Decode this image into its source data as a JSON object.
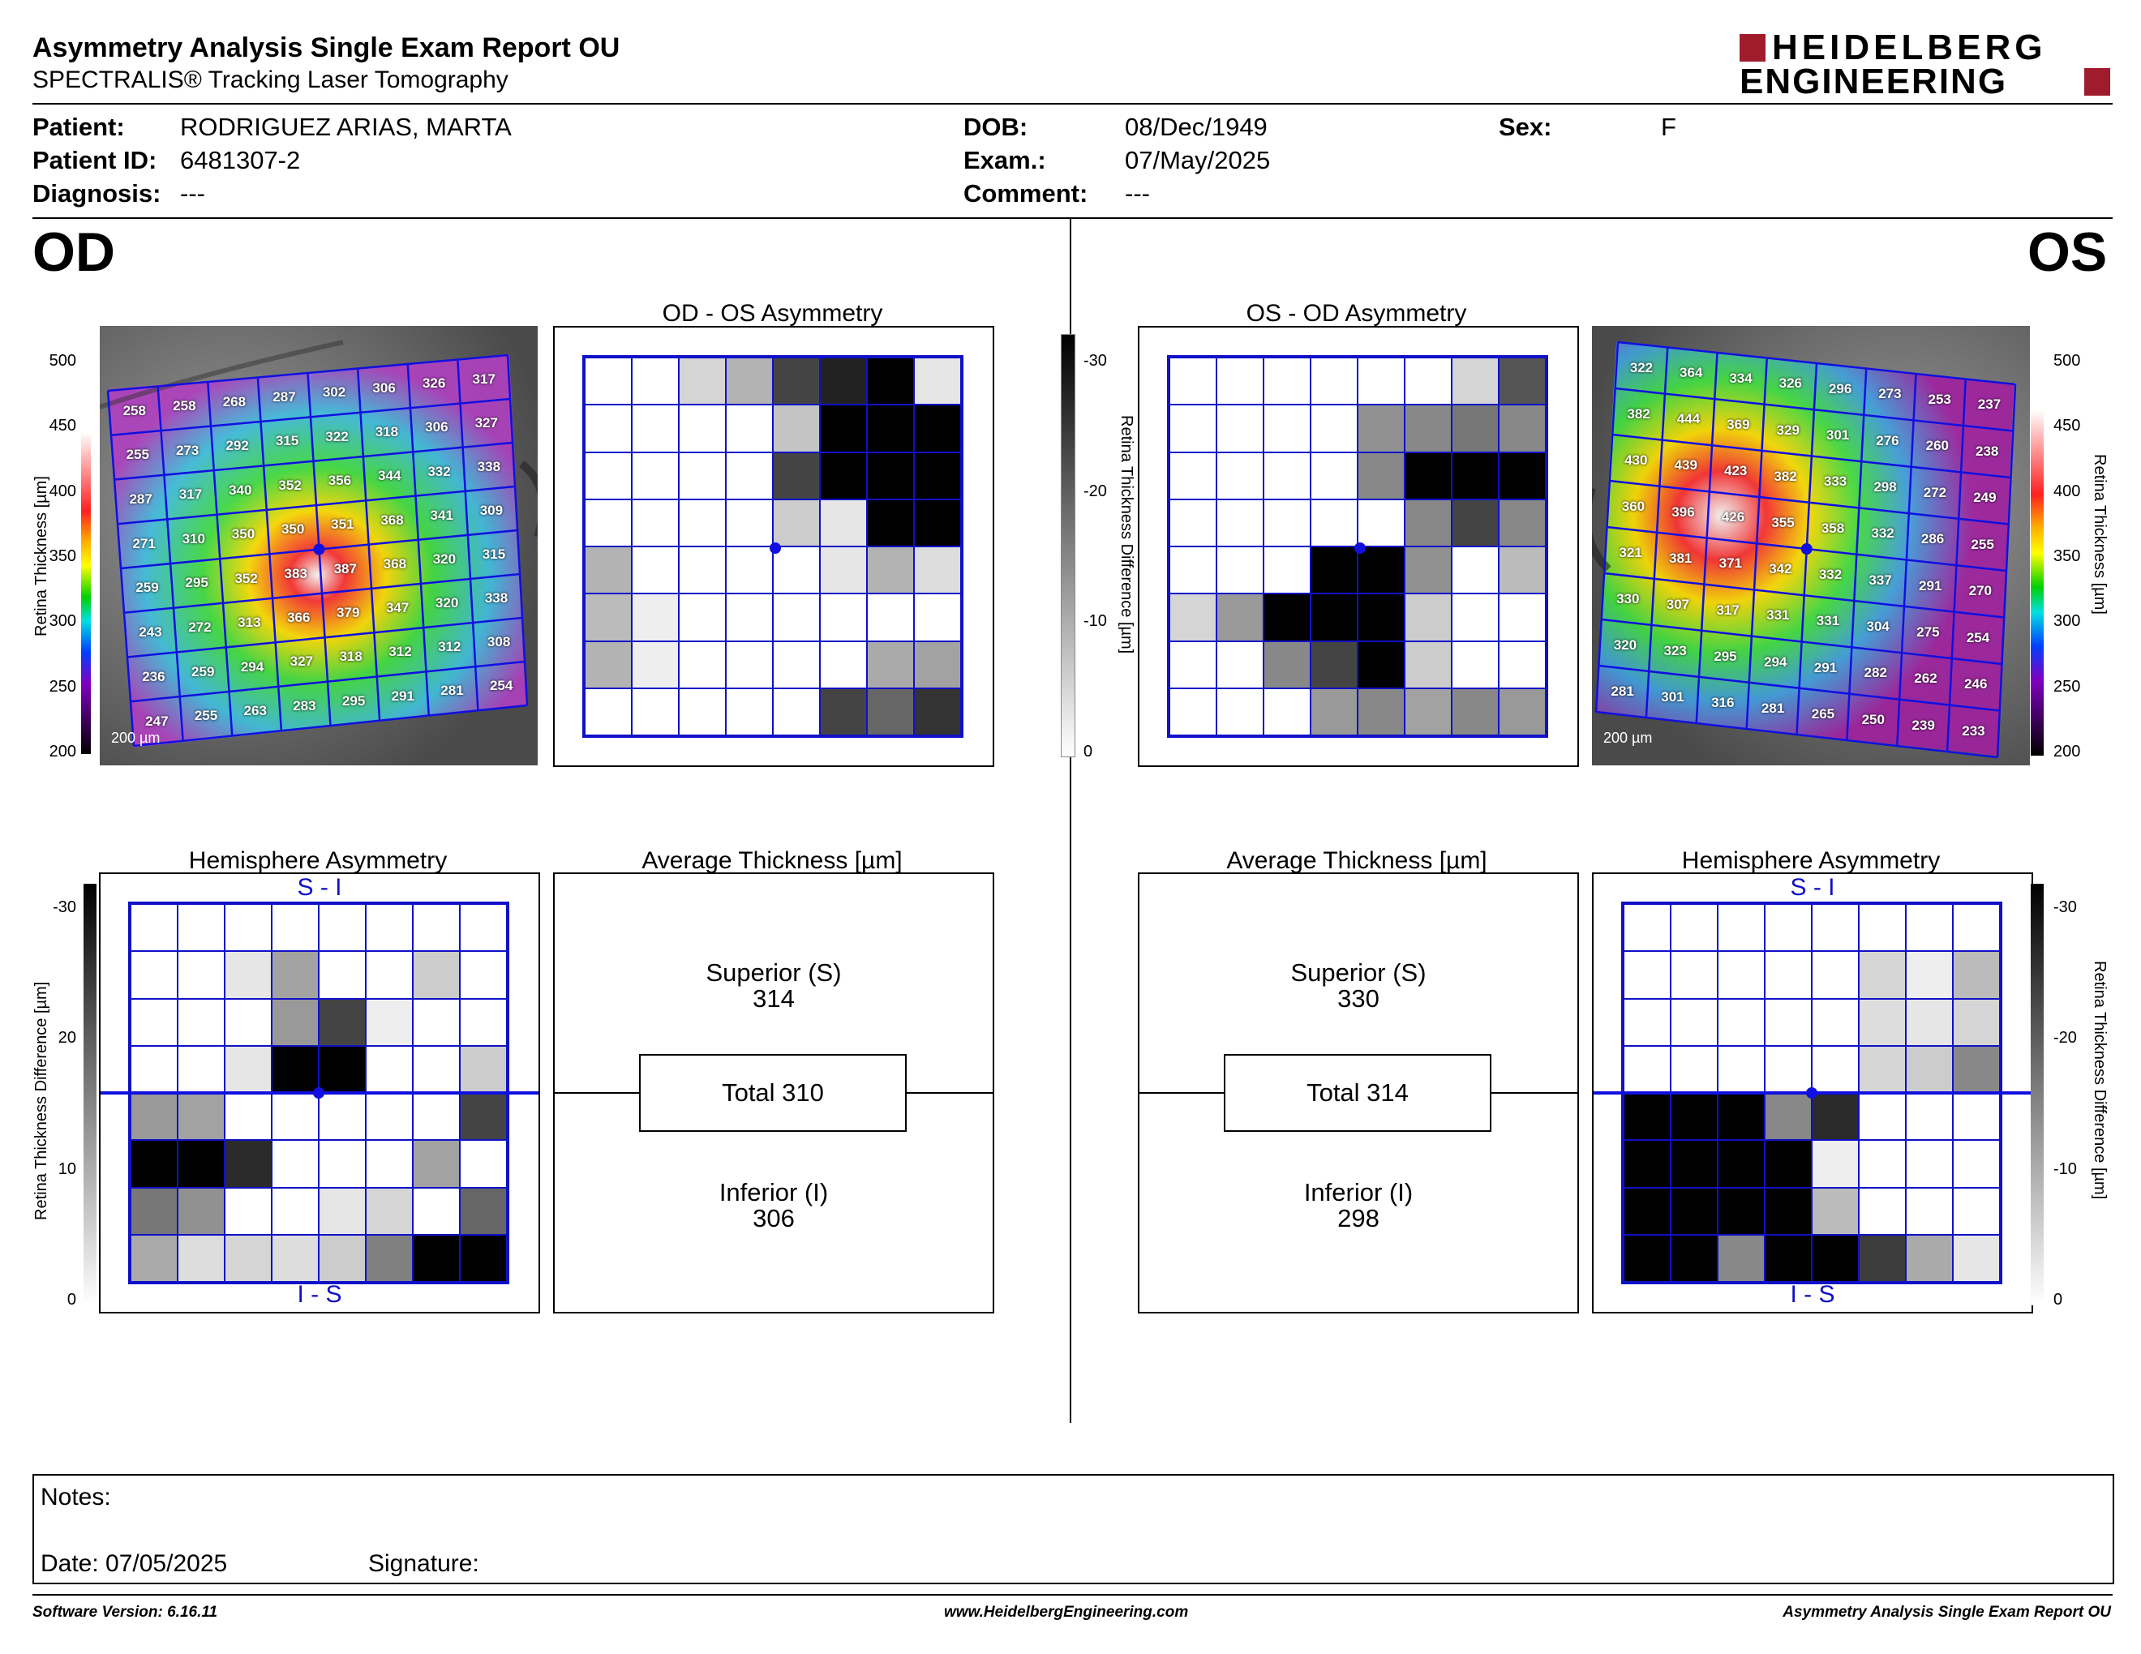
{
  "header": {
    "title": "Asymmetry Analysis Single Exam Report OU",
    "subtitle": "SPECTRALIS® Tracking Laser Tomography",
    "logo_line1": "HEIDELBERG",
    "logo_line2": "ENGINEERING"
  },
  "patient": {
    "patient_label": "Patient:",
    "patient": "RODRIGUEZ ARIAS, MARTA",
    "id_label": "Patient ID:",
    "id": "6481307-2",
    "diag_label": "Diagnosis:",
    "diagnosis": "---",
    "dob_label": "DOB:",
    "dob": "08/Dec/1949",
    "exam_label": "Exam.:",
    "exam": "07/May/2025",
    "comment_label": "Comment:",
    "comment": "---",
    "sex_label": "Sex:",
    "sex": "F"
  },
  "od": {
    "eye": "OD",
    "asym_title": "OD - OS Asymmetry",
    "hemi_title": "Hemisphere Asymmetry",
    "avg_title": "Average Thickness [µm]",
    "superior_label": "Superior (S)",
    "superior": "314",
    "total": "Total 310",
    "inferior_label": "Inferior (I)",
    "inferior": "306",
    "thickness": [
      [
        258,
        258,
        268,
        287,
        302,
        306,
        326,
        317
      ],
      [
        255,
        273,
        292,
        315,
        322,
        318,
        306,
        327
      ],
      [
        287,
        317,
        340,
        352,
        356,
        344,
        332,
        338
      ],
      [
        271,
        310,
        350,
        350,
        351,
        368,
        341,
        309
      ],
      [
        259,
        295,
        352,
        383,
        387,
        368,
        320,
        315
      ],
      [
        243,
        272,
        313,
        366,
        379,
        347,
        320,
        338
      ],
      [
        236,
        259,
        294,
        327,
        318,
        312,
        312,
        308
      ],
      [
        247,
        255,
        263,
        283,
        295,
        291,
        281,
        254
      ]
    ],
    "asym": [
      [
        0,
        0,
        5,
        9,
        22,
        26,
        30,
        3
      ],
      [
        0,
        0,
        0,
        0,
        7,
        30,
        30,
        30
      ],
      [
        0,
        0,
        0,
        0,
        22,
        30,
        30,
        30
      ],
      [
        0,
        0,
        0,
        0,
        6,
        3,
        30,
        30
      ],
      [
        9,
        0,
        0,
        0,
        0,
        3,
        9,
        4
      ],
      [
        8,
        2,
        0,
        0,
        0,
        0,
        0,
        0
      ],
      [
        9,
        2,
        0,
        0,
        0,
        0,
        10,
        11
      ],
      [
        0,
        0,
        0,
        0,
        0,
        22,
        18,
        24
      ]
    ],
    "hemi": [
      [
        0,
        0,
        0,
        0,
        0,
        0,
        0,
        0
      ],
      [
        0,
        0,
        3,
        11,
        0,
        0,
        6,
        0
      ],
      [
        0,
        0,
        0,
        12,
        22,
        2,
        0,
        0
      ],
      [
        0,
        0,
        3,
        30,
        30,
        0,
        0,
        6
      ],
      [
        12,
        11,
        0,
        0,
        0,
        0,
        0,
        22
      ],
      [
        30,
        30,
        25,
        0,
        0,
        0,
        11,
        0
      ],
      [
        16,
        13,
        0,
        0,
        3,
        5,
        0,
        18
      ],
      [
        10,
        4,
        5,
        4,
        6,
        15,
        30,
        30
      ]
    ]
  },
  "os": {
    "eye": "OS",
    "asym_title": "OS - OD Asymmetry",
    "hemi_title": "Hemisphere Asymmetry",
    "avg_title": "Average Thickness [µm]",
    "superior_label": "Superior (S)",
    "superior": "330",
    "total": "Total 314",
    "inferior_label": "Inferior (I)",
    "inferior": "298",
    "thickness": [
      [
        322,
        364,
        334,
        326,
        296,
        273,
        253,
        237
      ],
      [
        382,
        444,
        369,
        329,
        301,
        276,
        260,
        238
      ],
      [
        430,
        439,
        423,
        382,
        333,
        298,
        272,
        249
      ],
      [
        360,
        396,
        426,
        355,
        358,
        332,
        286,
        255
      ],
      [
        321,
        381,
        371,
        342,
        332,
        337,
        291,
        270
      ],
      [
        330,
        307,
        317,
        331,
        331,
        304,
        275,
        254
      ],
      [
        320,
        323,
        295,
        294,
        291,
        282,
        262,
        246
      ],
      [
        281,
        301,
        316,
        281,
        265,
        250,
        239,
        233
      ]
    ],
    "asym": [
      [
        0,
        0,
        0,
        0,
        0,
        0,
        5,
        20
      ],
      [
        0,
        0,
        0,
        0,
        13,
        14,
        16,
        14
      ],
      [
        0,
        0,
        0,
        0,
        14,
        30,
        30,
        30
      ],
      [
        0,
        0,
        0,
        0,
        0,
        14,
        22,
        14
      ],
      [
        0,
        0,
        0,
        30,
        30,
        13,
        0,
        8
      ],
      [
        5,
        12,
        30,
        30,
        30,
        6,
        0,
        0
      ],
      [
        0,
        0,
        14,
        22,
        30,
        6,
        0,
        0
      ],
      [
        0,
        0,
        0,
        12,
        14,
        11,
        14,
        12
      ]
    ],
    "hemi": [
      [
        0,
        0,
        0,
        0,
        0,
        0,
        0,
        0
      ],
      [
        0,
        0,
        0,
        0,
        0,
        5,
        2,
        8
      ],
      [
        0,
        0,
        0,
        0,
        0,
        4,
        3,
        5
      ],
      [
        0,
        0,
        0,
        0,
        0,
        5,
        6,
        14
      ],
      [
        30,
        30,
        30,
        14,
        25,
        0,
        0,
        0
      ],
      [
        30,
        30,
        30,
        30,
        2,
        0,
        0,
        0
      ],
      [
        30,
        30,
        30,
        30,
        8,
        0,
        0,
        0
      ],
      [
        30,
        30,
        14,
        30,
        30,
        23,
        10,
        3
      ]
    ]
  },
  "labels": {
    "si": "S - I",
    "is": "I - S",
    "scalebar": "200 µm",
    "thick_axis": "Retina  Thickness [µm]",
    "diff_axis": "Retina Thickness Difference [µm]",
    "thick_ticks": [
      "500",
      "450",
      "400",
      "350",
      "300",
      "250",
      "200"
    ],
    "diff_ticks": [
      "-30",
      "-20",
      "-10",
      "0"
    ],
    "diff_ticks_left": [
      "-30",
      "20",
      "10",
      "0"
    ]
  },
  "notes": {
    "notes_label": "Notes:",
    "date_label": "Date: 07/05/2025",
    "signature_label": "Signature:"
  },
  "footer": {
    "left": "Software Version: 6.16.11",
    "center": "www.HeidelbergEngineering.com",
    "right": "Asymmetry Analysis Single Exam Report OU"
  }
}
